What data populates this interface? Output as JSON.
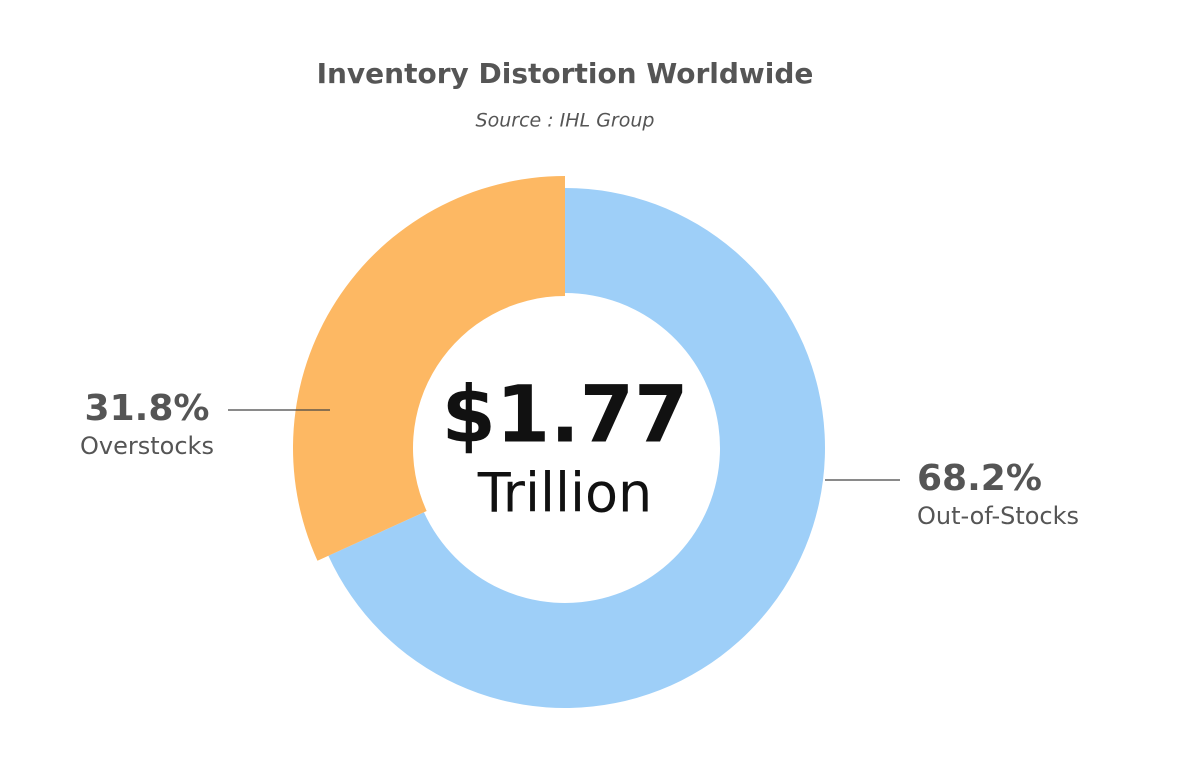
{
  "chart_data": {
    "type": "donut",
    "title": "Inventory Distortion Worldwide",
    "subtitle": "Source : IHL Group",
    "center_label": "$1.77",
    "center_sublabel": "Trillion",
    "categories": [
      "Out-of-Stocks",
      "Overstocks"
    ],
    "values": [
      68.2,
      31.8
    ],
    "value_labels": [
      "68.2%",
      "31.8%"
    ],
    "colors": [
      "#9ecff8",
      "#fdb863"
    ]
  }
}
